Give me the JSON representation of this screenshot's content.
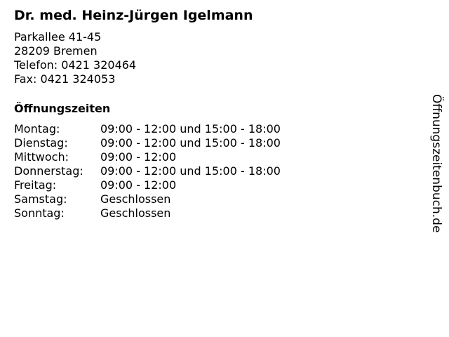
{
  "name": "Dr. med. Heinz-Jürgen Igelmann",
  "address": {
    "street": "Parkallee 41-45",
    "city": "28209 Bremen",
    "phone": "Telefon: 0421 320464",
    "fax": "Fax: 0421 324053"
  },
  "hours_heading": "Öffnungszeiten",
  "hours": [
    {
      "day": "Montag:",
      "time": "09:00 - 12:00 und 15:00 - 18:00"
    },
    {
      "day": "Dienstag:",
      "time": "09:00 - 12:00 und 15:00 - 18:00"
    },
    {
      "day": "Mittwoch:",
      "time": "09:00 - 12:00"
    },
    {
      "day": "Donnerstag:",
      "time": "09:00 - 12:00 und 15:00 - 18:00"
    },
    {
      "day": "Freitag:",
      "time": "09:00 - 12:00"
    },
    {
      "day": "Samstag:",
      "time": "Geschlossen"
    },
    {
      "day": "Sonntag:",
      "time": "Geschlossen"
    }
  ],
  "watermark": "Öffnungszeitenbuch.de"
}
